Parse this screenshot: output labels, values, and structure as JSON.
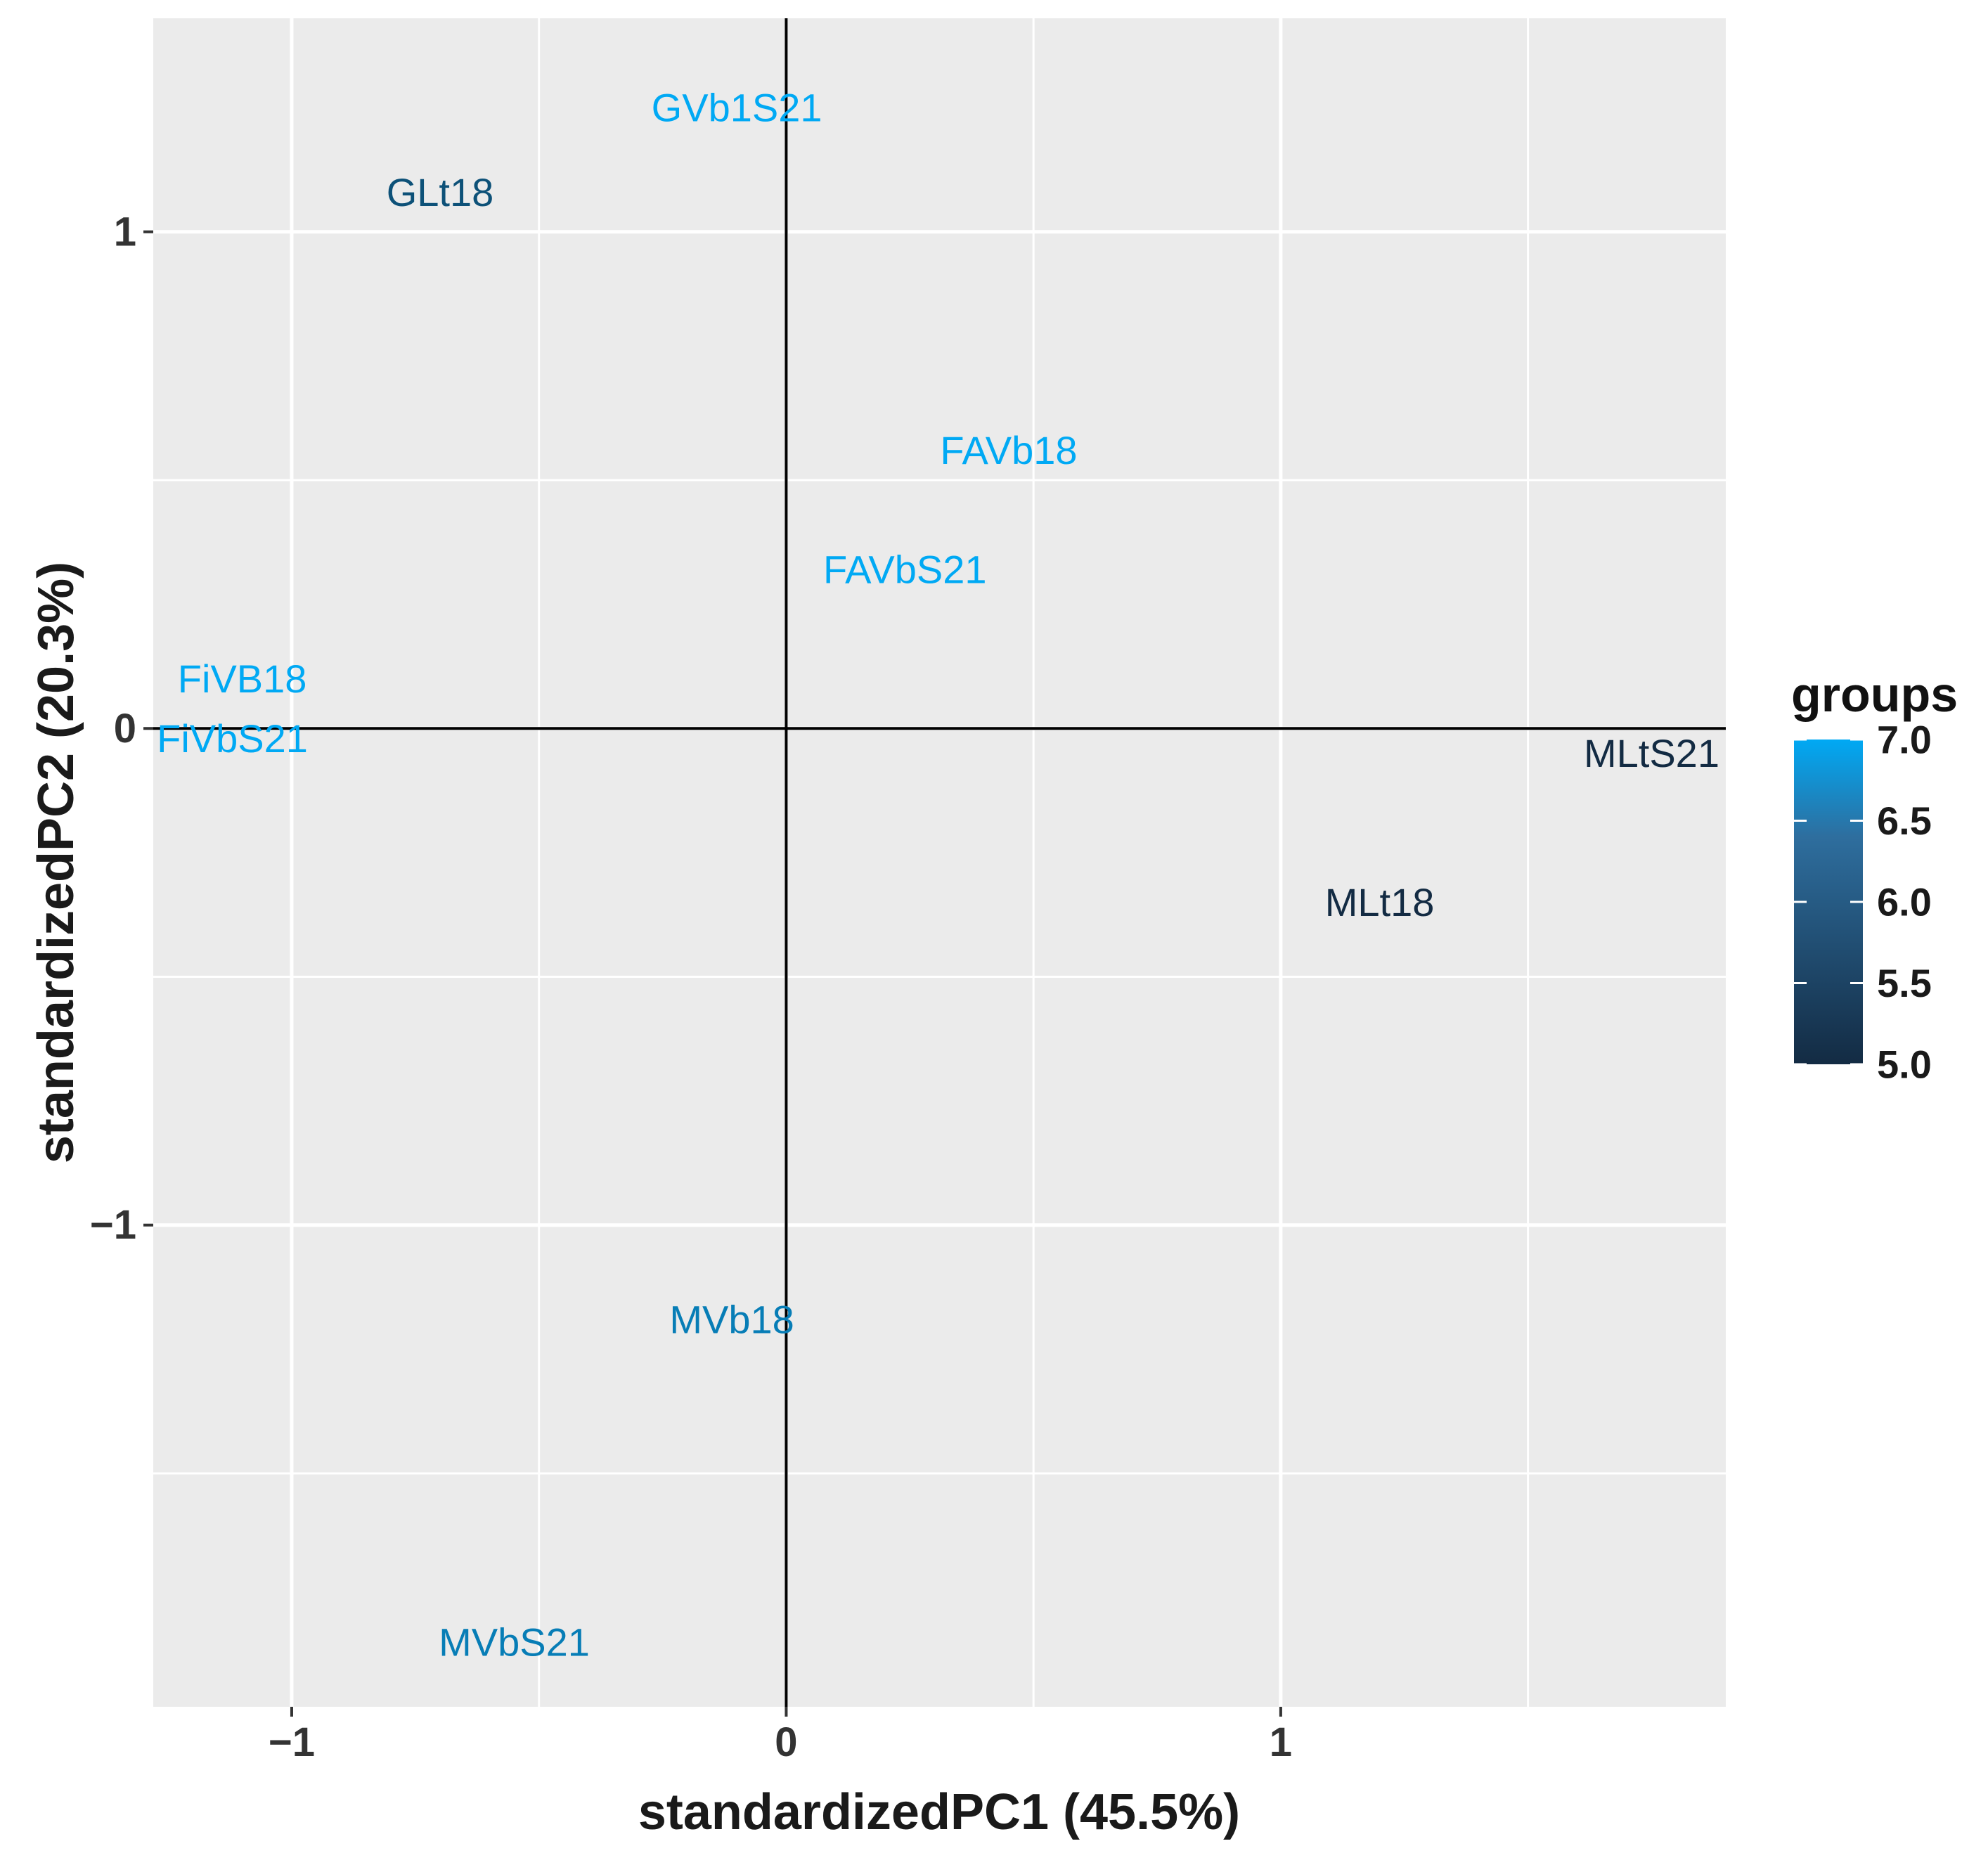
{
  "chart_data": {
    "type": "scatter",
    "title": "",
    "xlabel": "standardizedPC1 (45.5%)",
    "ylabel": "standardizedPC2 (20.3%)",
    "xlim": [
      -1.28,
      1.9
    ],
    "ylim": [
      -1.97,
      1.43
    ],
    "x_ticks": [
      -1,
      0,
      1
    ],
    "x_tick_labels": [
      "−1",
      "0",
      "1"
    ],
    "y_ticks": [
      -1,
      0,
      1
    ],
    "y_tick_labels": [
      "−1",
      "0",
      "1"
    ],
    "minor_x": [
      -0.5,
      0.5,
      1.5
    ],
    "minor_y": [
      -1.5,
      -0.5,
      0.5
    ],
    "reference_lines": {
      "x": 0,
      "y": 0
    },
    "grid": true,
    "points": [
      {
        "label": "GVb1S21",
        "x": -0.1,
        "y": 1.25,
        "group": 7.0
      },
      {
        "label": "GLt18",
        "x": -0.7,
        "y": 1.08,
        "group": 5.6
      },
      {
        "label": "FAVb18",
        "x": 0.45,
        "y": 0.56,
        "group": 7.0
      },
      {
        "label": "FAVbS21",
        "x": 0.24,
        "y": 0.32,
        "group": 7.0
      },
      {
        "label": "FiVB18",
        "x": -1.1,
        "y": 0.1,
        "group": 7.0
      },
      {
        "label": "FiVbS21",
        "x": -1.12,
        "y": -0.02,
        "group": 7.0
      },
      {
        "label": "MLtS21",
        "x": 1.75,
        "y": -0.05,
        "group": 5.0
      },
      {
        "label": "MLt18",
        "x": 1.2,
        "y": -0.35,
        "group": 5.0
      },
      {
        "label": "MVb18",
        "x": -0.11,
        "y": -1.19,
        "group": 6.3
      },
      {
        "label": "MVbS21",
        "x": -0.55,
        "y": -1.84,
        "group": 6.3
      }
    ],
    "legend": {
      "title": "groups",
      "position": "right",
      "type": "colorbar",
      "range": [
        5.0,
        7.0
      ],
      "labels": [
        "7.0",
        "6.5",
        "6.0",
        "5.5",
        "5.0"
      ],
      "label_values": [
        7.0,
        6.5,
        6.0,
        5.5,
        5.0
      ],
      "color_low": "#132B43",
      "color_high": "#56B1F7",
      "color_top": "#00A9F4"
    },
    "colors": {
      "panel_background": "#EBEBEB",
      "grid": "#FFFFFF",
      "reference_line": "#000000"
    }
  }
}
